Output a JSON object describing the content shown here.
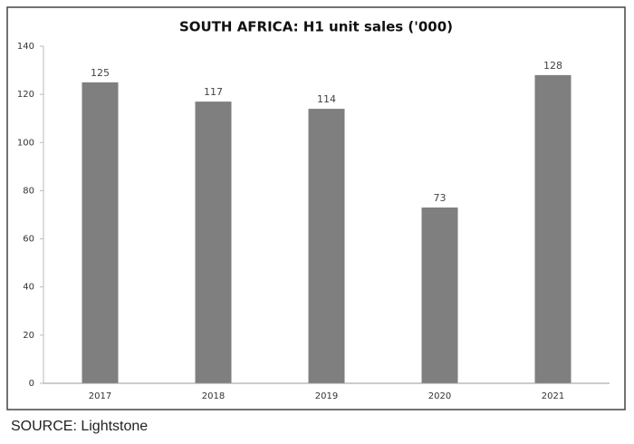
{
  "chart_data": {
    "type": "bar",
    "title": "SOUTH AFRICA: H1 unit sales ('000)",
    "categories": [
      "2017",
      "2018",
      "2019",
      "2020",
      "2021"
    ],
    "values": [
      125,
      117,
      114,
      73,
      128
    ],
    "color": "#7f7f7f",
    "ylim": [
      0,
      140
    ],
    "yticks": [
      0,
      20,
      40,
      60,
      80,
      100,
      120,
      140
    ],
    "grid": false
  },
  "source": "SOURCE: Lightstone"
}
